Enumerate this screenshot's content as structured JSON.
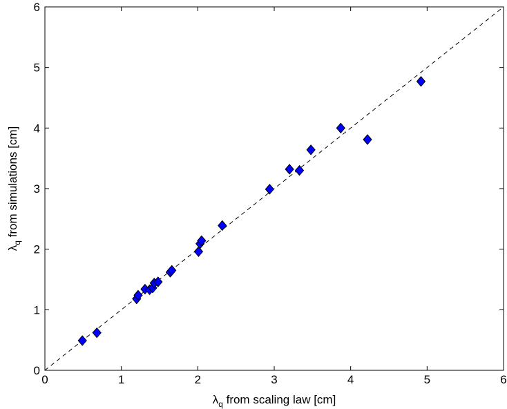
{
  "chart_data": {
    "type": "scatter",
    "title": "",
    "xlabel": {
      "symbol": "λ",
      "subscript": "q",
      "text": " from scaling law [cm]"
    },
    "ylabel": {
      "symbol": "λ",
      "subscript": "q",
      "text": " from simulations [cm]"
    },
    "xlim": [
      0,
      6
    ],
    "ylim": [
      0,
      6
    ],
    "xticks": [
      0,
      1,
      2,
      3,
      4,
      5,
      6
    ],
    "yticks": [
      0,
      1,
      2,
      3,
      4,
      5,
      6
    ],
    "xtick_labels": [
      "0",
      "1",
      "2",
      "3",
      "4",
      "5",
      "6"
    ],
    "ytick_labels": [
      "0",
      "1",
      "2",
      "3",
      "4",
      "5",
      "6"
    ],
    "grid": false,
    "marker": "diamond",
    "marker_color": "#0000ff",
    "reference_line": {
      "style": "dashed",
      "color": "#000000",
      "from": [
        0,
        0
      ],
      "to": [
        6,
        6
      ]
    },
    "series": [
      {
        "points": [
          {
            "x": 0.49,
            "y": 0.49
          },
          {
            "x": 0.68,
            "y": 0.62
          },
          {
            "x": 1.2,
            "y": 1.18
          },
          {
            "x": 1.22,
            "y": 1.24
          },
          {
            "x": 1.31,
            "y": 1.34
          },
          {
            "x": 1.37,
            "y": 1.33
          },
          {
            "x": 1.41,
            "y": 1.36
          },
          {
            "x": 1.43,
            "y": 1.44
          },
          {
            "x": 1.48,
            "y": 1.46
          },
          {
            "x": 1.64,
            "y": 1.62
          },
          {
            "x": 1.66,
            "y": 1.65
          },
          {
            "x": 2.01,
            "y": 1.96
          },
          {
            "x": 2.03,
            "y": 2.09
          },
          {
            "x": 2.05,
            "y": 2.14
          },
          {
            "x": 2.32,
            "y": 2.39
          },
          {
            "x": 2.94,
            "y": 2.99
          },
          {
            "x": 3.2,
            "y": 3.32
          },
          {
            "x": 3.33,
            "y": 3.3
          },
          {
            "x": 3.48,
            "y": 3.64
          },
          {
            "x": 3.87,
            "y": 4.0
          },
          {
            "x": 4.22,
            "y": 3.81
          },
          {
            "x": 4.92,
            "y": 4.77
          }
        ]
      }
    ]
  }
}
